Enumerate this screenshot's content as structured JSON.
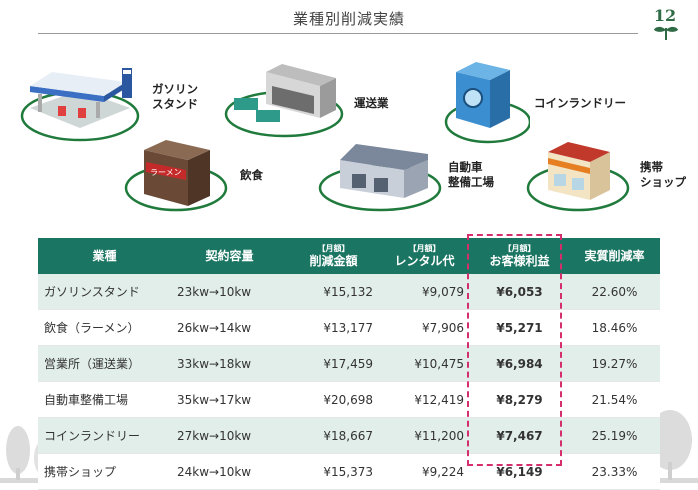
{
  "page": {
    "title": "業種別削減実績",
    "page_number": "12"
  },
  "illustrations": [
    {
      "name": "gas-station",
      "label_lines": [
        "ガソリン",
        "スタンド"
      ]
    },
    {
      "name": "transport",
      "label_lines": [
        "運送業"
      ]
    },
    {
      "name": "laundry",
      "label_lines": [
        "コインランドリー"
      ]
    },
    {
      "name": "restaurant",
      "label_lines": [
        "飲食"
      ],
      "sign": "ラーメン"
    },
    {
      "name": "garage",
      "label_lines": [
        "自動車",
        "整備工場"
      ]
    },
    {
      "name": "mobile-shop",
      "label_lines": [
        "携帯",
        "ショップ"
      ]
    }
  ],
  "table": {
    "headers": [
      {
        "sub": "",
        "label": "業種"
      },
      {
        "sub": "",
        "label": "契約容量"
      },
      {
        "sub": "【月額】",
        "label": "削減金額"
      },
      {
        "sub": "【月額】",
        "label": "レンタル代"
      },
      {
        "sub": "【月額】",
        "label": "お客様利益"
      },
      {
        "sub": "",
        "label": "実質削減率"
      }
    ],
    "rows": [
      {
        "industry": "ガソリンスタンド",
        "capacity": "23kw→10kw",
        "reduction": "¥15,132",
        "rental": "¥9,079",
        "profit": "¥6,053",
        "rate": "22.60%"
      },
      {
        "industry": "飲食（ラーメン）",
        "capacity": "26kw→14kw",
        "reduction": "¥13,177",
        "rental": "¥7,906",
        "profit": "¥5,271",
        "rate": "18.46%"
      },
      {
        "industry": "営業所（運送業）",
        "capacity": "33kw→18kw",
        "reduction": "¥17,459",
        "rental": "¥10,475",
        "profit": "¥6,984",
        "rate": "19.27%"
      },
      {
        "industry": "自動車整備工場",
        "capacity": "35kw→17kw",
        "reduction": "¥20,698",
        "rental": "¥12,419",
        "profit": "¥8,279",
        "rate": "21.54%"
      },
      {
        "industry": "コインランドリー",
        "capacity": "27kw→10kw",
        "reduction": "¥18,667",
        "rental": "¥11,200",
        "profit": "¥7,467",
        "rate": "25.19%"
      },
      {
        "industry": "携帯ショップ",
        "capacity": "24kw→10kw",
        "reduction": "¥15,373",
        "rental": "¥9,224",
        "profit": "¥6,149",
        "rate": "23.33%"
      }
    ]
  },
  "colors": {
    "header": "#1b7563",
    "row_tint": "#e2eeea",
    "highlight_border": "#d42f6c",
    "accent_green": "#2f6b46",
    "tree_silhouette": "#d9d9d9"
  }
}
